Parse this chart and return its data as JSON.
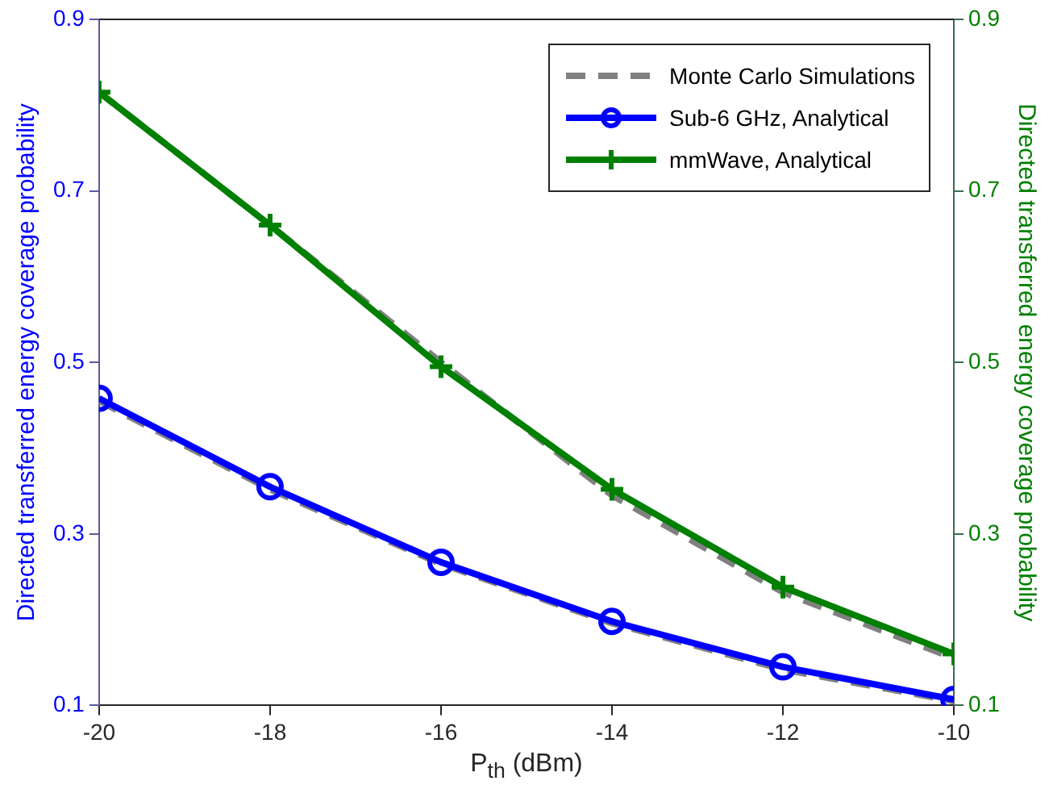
{
  "chart_data": {
    "type": "line",
    "xlabel": "P$_{th}$ (dBm)",
    "ylabel": "Directed transferred energy coverage probability",
    "y2label": "Directed transferred energy coverage probability",
    "x": [
      -20,
      -18,
      -16,
      -14,
      -12,
      -10
    ],
    "series": [
      {
        "name": "Monte Carlo Simulations",
        "color": "#808080",
        "line_style": "dashed",
        "marker": "none",
        "values": [
          0.455,
          0.352,
          0.265,
          0.196,
          0.142,
          0.105
        ]
      },
      {
        "color": "#808080",
        "line_style": "dashed",
        "marker": "none",
        "axis": "y2",
        "values": [
          0.815,
          0.66,
          0.5,
          0.345,
          0.232,
          0.155
        ]
      },
      {
        "name": "Sub-6 GHz, Analytical",
        "color": "#0000ff",
        "line_style": "solid",
        "marker": "circle",
        "values": [
          0.458,
          0.355,
          0.267,
          0.198,
          0.145,
          0.107
        ]
      },
      {
        "name": "mmWave, Analytical",
        "color": "#008000",
        "line_style": "solid",
        "marker": "cross",
        "axis": "y2",
        "values": [
          0.815,
          0.66,
          0.495,
          0.352,
          0.238,
          0.16
        ]
      }
    ],
    "xlim": [
      -20,
      -10
    ],
    "xticks": [
      -20,
      -18,
      -16,
      -14,
      -12,
      -10
    ],
    "ylim": [
      0.1,
      0.9
    ],
    "yticks": [
      0.1,
      0.3,
      0.5,
      0.7,
      0.9
    ],
    "y2lim": [
      0.1,
      0.9
    ],
    "y2ticks": [
      0.1,
      0.3,
      0.5,
      0.7,
      0.9
    ],
    "grid": false,
    "legend": "top right"
  }
}
